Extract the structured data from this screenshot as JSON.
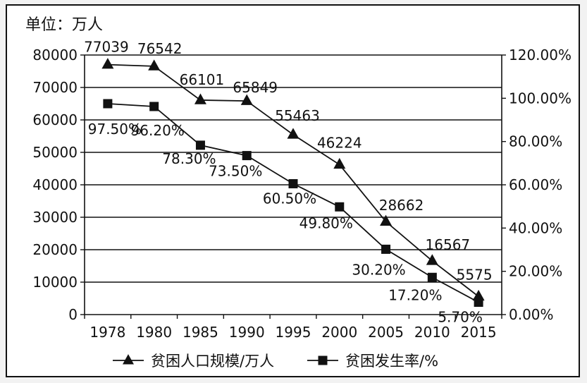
{
  "chart_data": {
    "type": "line",
    "unit_label": "单位：万人",
    "categories": [
      "1978",
      "1980",
      "1985",
      "1990",
      "1995",
      "2000",
      "2005",
      "2010",
      "2015"
    ],
    "series": [
      {
        "name": "贫困人口规模/万人",
        "axis": "left",
        "marker": "triangle",
        "values": [
          77039,
          76542,
          66101,
          65849,
          55463,
          46224,
          28662,
          16567,
          5575
        ],
        "labels": [
          "77039",
          "76542",
          "66101",
          "65849",
          "55463",
          "46224",
          "28662",
          "16567",
          "5575"
        ]
      },
      {
        "name": "贫困发生率/%",
        "axis": "right",
        "marker": "square",
        "values": [
          97.5,
          96.2,
          78.3,
          73.5,
          60.5,
          49.8,
          30.2,
          17.2,
          5.7
        ],
        "labels": [
          "97.50%",
          "96.20%",
          "78.30%",
          "73.50%",
          "60.50%",
          "49.80%",
          "30.20%",
          "17.20%",
          "5.70%"
        ]
      }
    ],
    "y_left": {
      "ylim": [
        0,
        80000
      ],
      "ticks": [
        "0",
        "10000",
        "20000",
        "30000",
        "40000",
        "50000",
        "60000",
        "70000",
        "80000"
      ]
    },
    "y_right": {
      "ylim": [
        0,
        120
      ],
      "ticks": [
        "0.00%",
        "20.00%",
        "40.00%",
        "60.00%",
        "80.00%",
        "100.00%",
        "120.00%"
      ]
    },
    "grid": "horizontal",
    "legend_position": "bottom",
    "colors": {
      "line": "#111111",
      "grid": "#111111",
      "background": "#ffffff"
    }
  }
}
